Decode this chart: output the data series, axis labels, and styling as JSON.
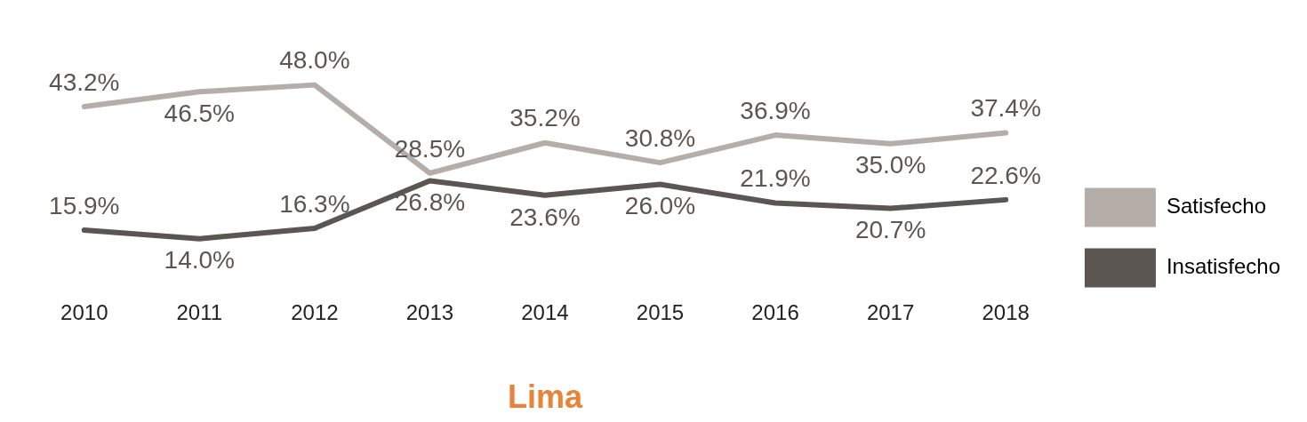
{
  "chart_data": {
    "type": "line",
    "xlabel": "Lima",
    "categories": [
      "2010",
      "2011",
      "2012",
      "2013",
      "2014",
      "2015",
      "2016",
      "2017",
      "2018"
    ],
    "data_labels": true,
    "legend": "right",
    "grid": false,
    "marker": "none",
    "line_style": "solid",
    "series": [
      {
        "name": "Satisfecho",
        "color": "#b5aea8",
        "values": [
          43.2,
          46.5,
          48.0,
          28.5,
          35.2,
          30.8,
          36.9,
          35.0,
          37.4
        ],
        "value_labels": [
          "43.2%",
          "46.5%",
          "48.0%",
          "28.5%",
          "35.2%",
          "30.8%",
          "36.9%",
          "35.0%",
          "37.4%"
        ]
      },
      {
        "name": "Insatisfecho",
        "color": "#5b5652",
        "values": [
          15.9,
          14.0,
          16.3,
          26.8,
          23.6,
          26.0,
          21.9,
          20.7,
          22.6
        ],
        "value_labels": [
          "15.9%",
          "14.0%",
          "16.3%",
          "26.8%",
          "23.6%",
          "26.0%",
          "21.9%",
          "20.7%",
          "22.6%"
        ]
      }
    ]
  }
}
